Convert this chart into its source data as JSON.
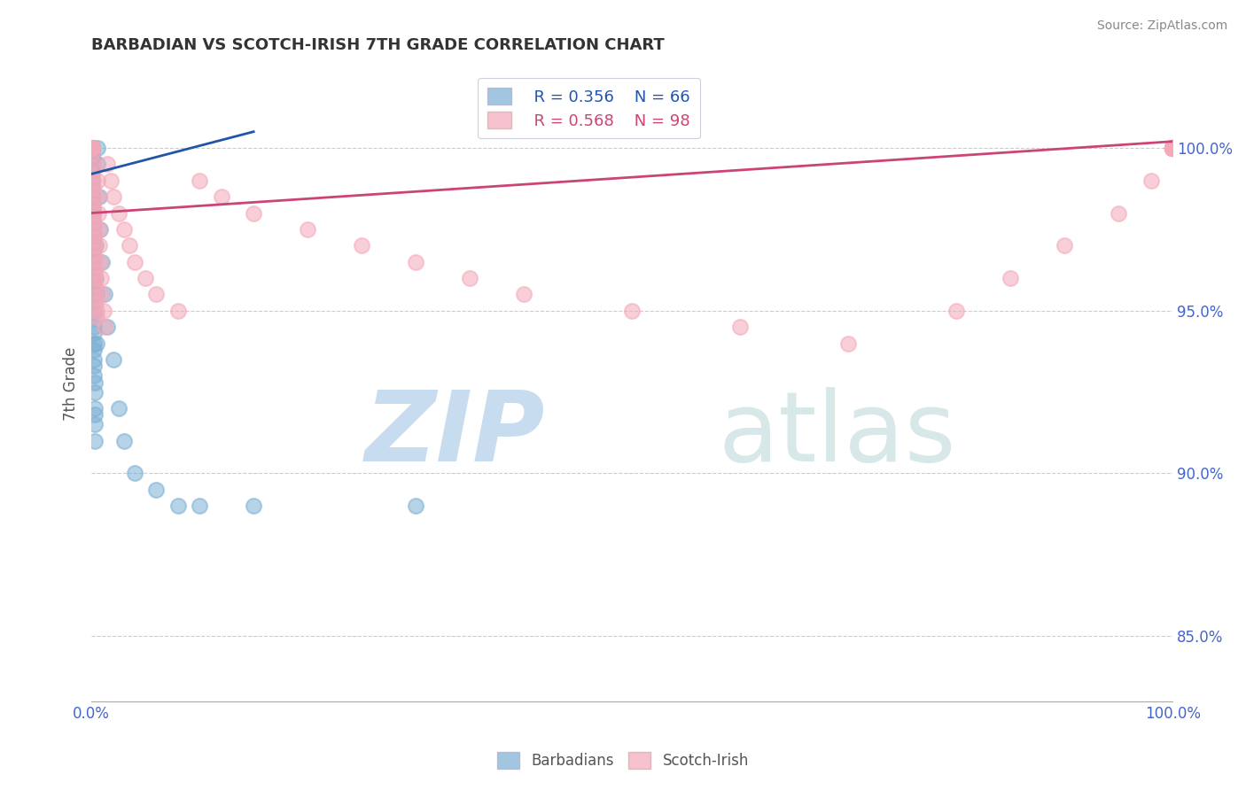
{
  "title": "BARBADIAN VS SCOTCH-IRISH 7TH GRADE CORRELATION CHART",
  "source_text": "Source: ZipAtlas.com",
  "ylabel": "7th Grade",
  "xlim": [
    0.0,
    100.0
  ],
  "ylim": [
    83.0,
    102.5
  ],
  "ytick_values": [
    85.0,
    90.0,
    95.0,
    100.0
  ],
  "ytick_labels": [
    "85.0%",
    "90.0%",
    "95.0%",
    "100.0%"
  ],
  "xtick_values": [
    0.0,
    100.0
  ],
  "xtick_labels": [
    "0.0%",
    "100.0%"
  ],
  "legend_blue_r": "R = 0.356",
  "legend_blue_n": "N = 66",
  "legend_pink_r": "R = 0.568",
  "legend_pink_n": "N = 98",
  "blue_color": "#7BAFD4",
  "pink_color": "#F4A8B8",
  "blue_line_color": "#2255AA",
  "pink_line_color": "#CC4477",
  "title_color": "#333333",
  "tick_color": "#4466CC",
  "ylabel_color": "#555555",
  "source_color": "#888888",
  "watermark_zip_color": "#C8DCF0",
  "watermark_atlas_color": "#D8E8E8",
  "grid_color": "#CCCCCC",
  "legend_bottom_color": "#555555",
  "blue_x": [
    0.05,
    0.05,
    0.06,
    0.07,
    0.07,
    0.08,
    0.08,
    0.09,
    0.09,
    0.1,
    0.1,
    0.1,
    0.1,
    0.1,
    0.11,
    0.11,
    0.12,
    0.12,
    0.13,
    0.13,
    0.14,
    0.14,
    0.15,
    0.15,
    0.15,
    0.16,
    0.17,
    0.18,
    0.19,
    0.2,
    0.2,
    0.21,
    0.22,
    0.22,
    0.23,
    0.24,
    0.25,
    0.25,
    0.26,
    0.27,
    0.28,
    0.3,
    0.3,
    0.32,
    0.35,
    0.35,
    0.4,
    0.42,
    0.45,
    0.5,
    0.55,
    0.6,
    0.7,
    0.8,
    1.0,
    1.2,
    1.5,
    2.0,
    2.5,
    3.0,
    4.0,
    6.0,
    8.0,
    10.0,
    15.0,
    30.0
  ],
  "blue_y": [
    100.0,
    100.0,
    100.0,
    100.0,
    100.0,
    100.0,
    99.8,
    99.7,
    99.5,
    99.3,
    99.2,
    99.0,
    98.8,
    98.6,
    98.5,
    98.3,
    98.1,
    98.0,
    97.8,
    97.6,
    97.4,
    97.2,
    97.0,
    96.8,
    96.6,
    96.5,
    96.3,
    96.0,
    95.8,
    95.5,
    95.3,
    95.0,
    94.8,
    94.5,
    94.3,
    94.0,
    93.8,
    93.5,
    93.3,
    93.0,
    92.8,
    92.5,
    92.0,
    91.8,
    91.5,
    91.0,
    97.0,
    96.0,
    95.5,
    94.0,
    100.0,
    99.5,
    98.5,
    97.5,
    96.5,
    95.5,
    94.5,
    93.5,
    92.0,
    91.0,
    90.0,
    89.5,
    89.0,
    89.0,
    89.0,
    89.0
  ],
  "pink_x": [
    0.05,
    0.06,
    0.07,
    0.08,
    0.09,
    0.1,
    0.1,
    0.11,
    0.12,
    0.13,
    0.14,
    0.15,
    0.16,
    0.17,
    0.18,
    0.2,
    0.2,
    0.22,
    0.25,
    0.25,
    0.28,
    0.3,
    0.3,
    0.33,
    0.35,
    0.38,
    0.4,
    0.42,
    0.45,
    0.5,
    0.55,
    0.6,
    0.65,
    0.7,
    0.75,
    0.8,
    0.9,
    1.0,
    1.1,
    1.2,
    1.5,
    1.8,
    2.0,
    2.5,
    3.0,
    3.5,
    4.0,
    5.0,
    6.0,
    8.0,
    10.0,
    12.0,
    15.0,
    20.0,
    25.0,
    30.0,
    35.0,
    40.0,
    50.0,
    60.0,
    70.0,
    80.0,
    85.0,
    90.0,
    95.0,
    98.0,
    100.0,
    100.0,
    100.0,
    100.0,
    100.0,
    100.0,
    100.0,
    100.0,
    100.0,
    100.0,
    100.0,
    100.0,
    100.0,
    100.0,
    100.0,
    100.0,
    100.0,
    100.0,
    100.0,
    100.0,
    100.0,
    100.0,
    100.0,
    100.0,
    100.0,
    100.0,
    100.0,
    100.0,
    100.0,
    100.0,
    100.0,
    100.0
  ],
  "pink_y": [
    100.0,
    100.0,
    100.0,
    100.0,
    99.8,
    99.6,
    99.4,
    99.2,
    99.0,
    98.8,
    98.6,
    98.4,
    98.2,
    98.0,
    97.8,
    97.6,
    97.4,
    97.2,
    97.0,
    96.8,
    96.6,
    96.4,
    96.2,
    96.0,
    95.8,
    95.6,
    95.4,
    95.2,
    95.0,
    94.8,
    99.0,
    98.5,
    98.0,
    97.5,
    97.0,
    96.5,
    96.0,
    95.5,
    95.0,
    94.5,
    99.5,
    99.0,
    98.5,
    98.0,
    97.5,
    97.0,
    96.5,
    96.0,
    95.5,
    95.0,
    99.0,
    98.5,
    98.0,
    97.5,
    97.0,
    96.5,
    96.0,
    95.5,
    95.0,
    94.5,
    94.0,
    95.0,
    96.0,
    97.0,
    98.0,
    99.0,
    100.0,
    100.0,
    100.0,
    100.0,
    100.0,
    100.0,
    100.0,
    100.0,
    100.0,
    100.0,
    100.0,
    100.0,
    100.0,
    100.0,
    100.0,
    100.0,
    100.0,
    100.0,
    100.0,
    100.0,
    100.0,
    100.0,
    100.0,
    100.0,
    100.0,
    100.0,
    100.0,
    100.0,
    100.0,
    100.0,
    100.0,
    100.0
  ],
  "blue_trendline_x": [
    0.0,
    15.0
  ],
  "blue_trendline_y": [
    99.2,
    100.5
  ],
  "pink_trendline_x": [
    0.0,
    100.0
  ],
  "pink_trendline_y": [
    98.0,
    100.2
  ]
}
